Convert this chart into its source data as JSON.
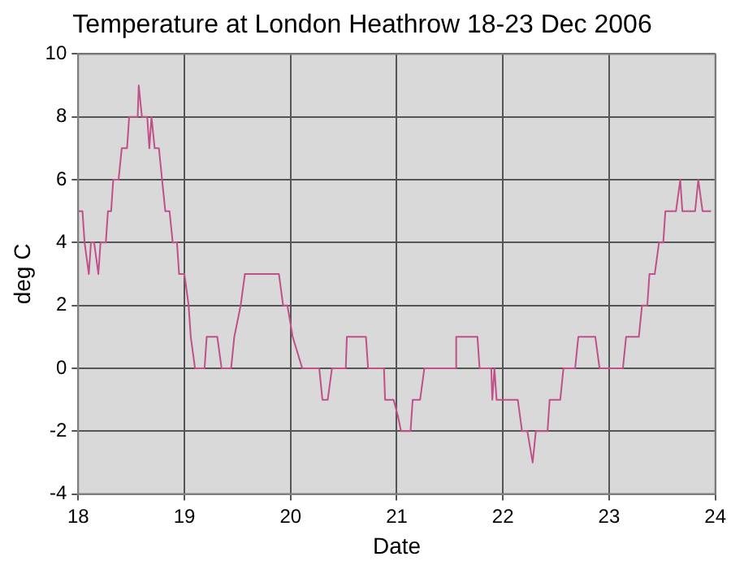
{
  "chart_data": {
    "type": "line",
    "title": "Temperature at London Heathrow 18-23 Dec 2006",
    "xlabel": "Date",
    "ylabel": "deg C",
    "xlim": [
      18,
      24
    ],
    "xticks": [
      18,
      19,
      20,
      21,
      22,
      23,
      24
    ],
    "ylim": [
      -4,
      10
    ],
    "yticks": [
      -4,
      -2,
      0,
      2,
      4,
      6,
      8,
      10
    ],
    "grid": true,
    "marker": "none",
    "line_style": "solid",
    "series": [
      {
        "color": "#c0508a",
        "x": [
          18.0,
          18.04,
          18.06,
          18.1,
          18.12,
          18.15,
          18.19,
          18.21,
          18.26,
          18.28,
          18.31,
          18.33,
          18.38,
          18.41,
          18.46,
          18.48,
          18.56,
          18.57,
          18.6,
          18.65,
          18.67,
          18.69,
          18.72,
          18.76,
          18.79,
          18.82,
          18.86,
          18.89,
          18.93,
          18.95,
          19.0,
          19.04,
          19.06,
          19.1,
          19.19,
          19.21,
          19.31,
          19.35,
          19.44,
          19.47,
          19.53,
          19.57,
          19.89,
          19.93,
          19.97,
          20.02,
          20.11,
          20.27,
          20.3,
          20.35,
          20.39,
          20.52,
          20.53,
          20.71,
          20.73,
          20.88,
          20.89,
          20.97,
          21.01,
          21.04,
          21.13,
          21.15,
          21.22,
          21.26,
          21.55,
          21.56,
          21.76,
          21.78,
          21.89,
          21.9,
          21.92,
          21.94,
          22.14,
          22.18,
          22.23,
          22.28,
          22.31,
          22.42,
          22.44,
          22.54,
          22.57,
          22.68,
          22.71,
          22.87,
          22.91,
          23.13,
          23.16,
          23.28,
          23.31,
          23.36,
          23.38,
          23.43,
          23.47,
          23.51,
          23.53,
          23.63,
          23.67,
          23.69,
          23.81,
          23.84,
          23.88,
          23.96
        ],
        "values": [
          5,
          5,
          4,
          3,
          4,
          4,
          3,
          4,
          4,
          5,
          5,
          6,
          6,
          7,
          7,
          8,
          8,
          9,
          8,
          8,
          7,
          8,
          7,
          7,
          6,
          5,
          5,
          4,
          4,
          3,
          3,
          2,
          1,
          0,
          0,
          1,
          1,
          0,
          0,
          1,
          2,
          3,
          3,
          2,
          2,
          1,
          0,
          0,
          -1,
          -1,
          0,
          0,
          1,
          1,
          0,
          0,
          -1,
          -1,
          -1.5,
          -2,
          -2,
          -1,
          -1,
          0,
          0,
          1,
          1,
          0,
          0,
          -1,
          0,
          -1,
          -1,
          -2,
          -2,
          -3,
          -2,
          -2,
          -1,
          -1,
          0,
          0,
          1,
          1,
          0,
          0,
          1,
          1,
          2,
          2,
          3,
          3,
          4,
          4,
          5,
          5,
          6,
          5,
          5,
          6,
          5,
          5
        ]
      }
    ]
  }
}
